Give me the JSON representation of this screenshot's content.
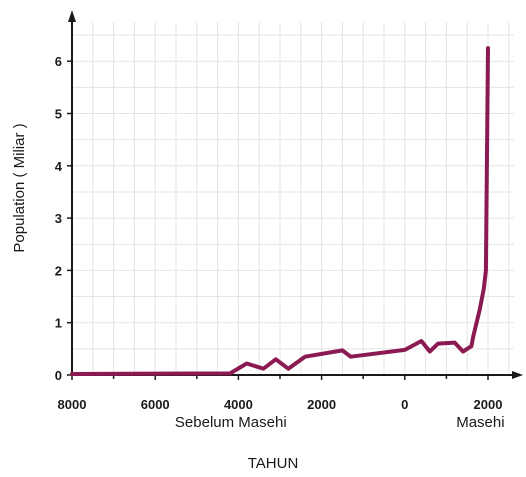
{
  "chart_data": {
    "type": "line",
    "title": "",
    "ylabel": "Population ( Miliar )",
    "xlabel": "TAHUN",
    "era_labels": [
      {
        "text": "Sebelum Masehi",
        "x": -5000
      },
      {
        "text": "Masehi",
        "x": 1000
      }
    ],
    "xlim": [
      -8000,
      2700
    ],
    "ylim": [
      0,
      6.8
    ],
    "x_ticks": [
      -8000,
      -6000,
      -4000,
      -2000,
      0,
      2000
    ],
    "x_tick_labels": [
      "8000",
      "6000",
      "4000",
      "2000",
      "0",
      "2000"
    ],
    "y_ticks": [
      0,
      1,
      2,
      3,
      4,
      5,
      6
    ],
    "y_tick_labels": [
      "0",
      "1",
      "2",
      "3",
      "4",
      "5",
      "6"
    ],
    "grid": true,
    "series": [
      {
        "color": "#8b1a52",
        "x": [
          -8000,
          -4200,
          -3800,
          -3400,
          -3100,
          -2800,
          -2400,
          -1500,
          -1300,
          0,
          400,
          600,
          800,
          1200,
          1400,
          1600,
          1650,
          1800,
          1900,
          1950,
          2000
        ],
        "y": [
          0.02,
          0.03,
          0.22,
          0.12,
          0.3,
          0.12,
          0.35,
          0.47,
          0.35,
          0.48,
          0.65,
          0.45,
          0.6,
          0.62,
          0.45,
          0.55,
          0.75,
          1.25,
          1.65,
          2.0,
          6.25
        ]
      }
    ]
  }
}
